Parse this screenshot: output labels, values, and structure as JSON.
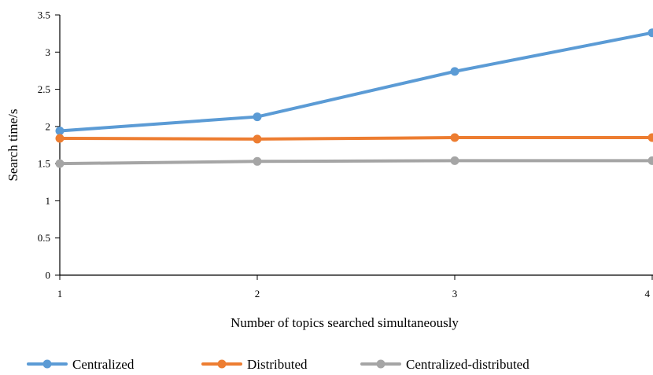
{
  "chart_data": {
    "type": "line",
    "title": "",
    "xlabel": "Number of topics searched simultaneously",
    "ylabel": "Search time/s",
    "categories": [
      "1",
      "2",
      "3",
      "4"
    ],
    "ylim": [
      0,
      3.5
    ],
    "yticks": [
      "0",
      "0.5",
      "1",
      "1.5",
      "2",
      "2.5",
      "3",
      "3.5"
    ],
    "ytick_values": [
      0,
      0.5,
      1,
      1.5,
      2,
      2.5,
      3,
      3.5
    ],
    "grid": false,
    "legend_position": "bottom",
    "series": [
      {
        "name": "Centralized",
        "color": "#5b9bd5",
        "values": [
          1.94,
          2.13,
          2.74,
          3.26
        ]
      },
      {
        "name": "Distributed",
        "color": "#ed7d31",
        "values": [
          1.84,
          1.83,
          1.85,
          1.85
        ]
      },
      {
        "name": "Centralized-distributed",
        "color": "#a5a5a5",
        "values": [
          1.5,
          1.53,
          1.54,
          1.54
        ]
      }
    ]
  }
}
